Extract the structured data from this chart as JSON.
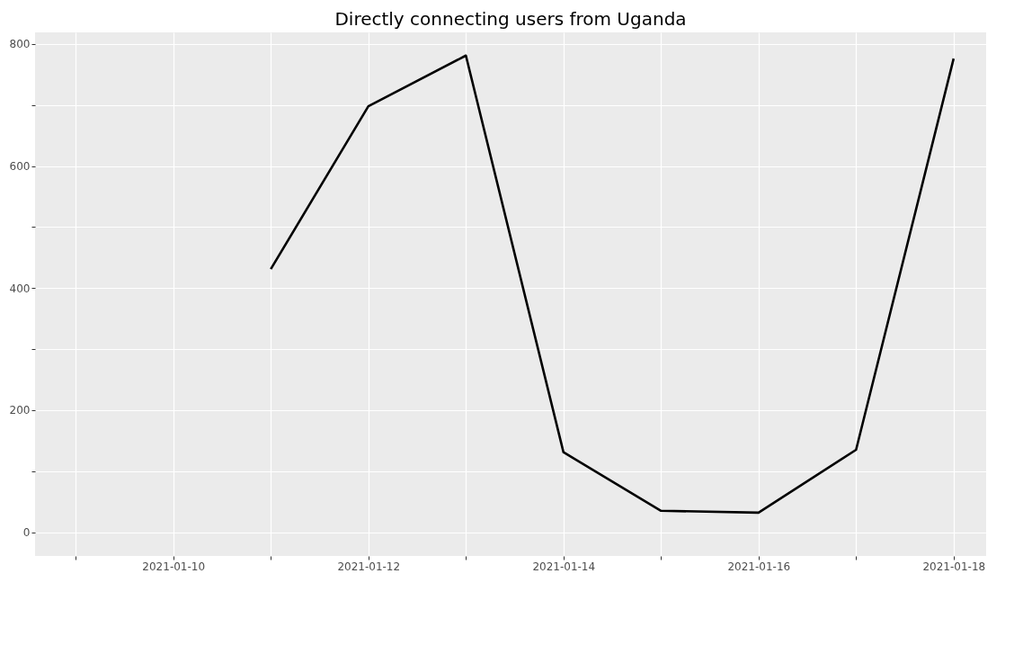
{
  "chart_data": {
    "type": "line",
    "title": "Directly connecting users from Uganda",
    "x": [
      "2021-01-11",
      "2021-01-12",
      "2021-01-13",
      "2021-01-14",
      "2021-01-15",
      "2021-01-16",
      "2021-01-17",
      "2021-01-18"
    ],
    "series": [
      {
        "color": "#000000",
        "values": [
          431,
          698,
          781,
          131,
          35,
          32,
          135,
          776
        ]
      }
    ],
    "xlim": [
      "2021-01-08T14:00",
      "2021-01-18T08:00"
    ],
    "xticks": [
      {
        "value": "2021-01-09",
        "label": null
      },
      {
        "value": "2021-01-10",
        "label": "2021-01-10"
      },
      {
        "value": "2021-01-11",
        "label": null
      },
      {
        "value": "2021-01-12",
        "label": "2021-01-12"
      },
      {
        "value": "2021-01-13",
        "label": null
      },
      {
        "value": "2021-01-14",
        "label": "2021-01-14"
      },
      {
        "value": "2021-01-15",
        "label": null
      },
      {
        "value": "2021-01-16",
        "label": "2021-01-16"
      },
      {
        "value": "2021-01-17",
        "label": null
      },
      {
        "value": "2021-01-18",
        "label": "2021-01-18"
      }
    ],
    "ylim": [
      -39,
      819
    ],
    "yticks": [
      0,
      {
        "value": 100,
        "label": null
      },
      200,
      {
        "value": 300,
        "label": null
      },
      400,
      {
        "value": 500,
        "label": null
      },
      600,
      {
        "value": 700,
        "label": null
      },
      800
    ],
    "grid": true,
    "marker": "none",
    "line_style": "solid"
  }
}
